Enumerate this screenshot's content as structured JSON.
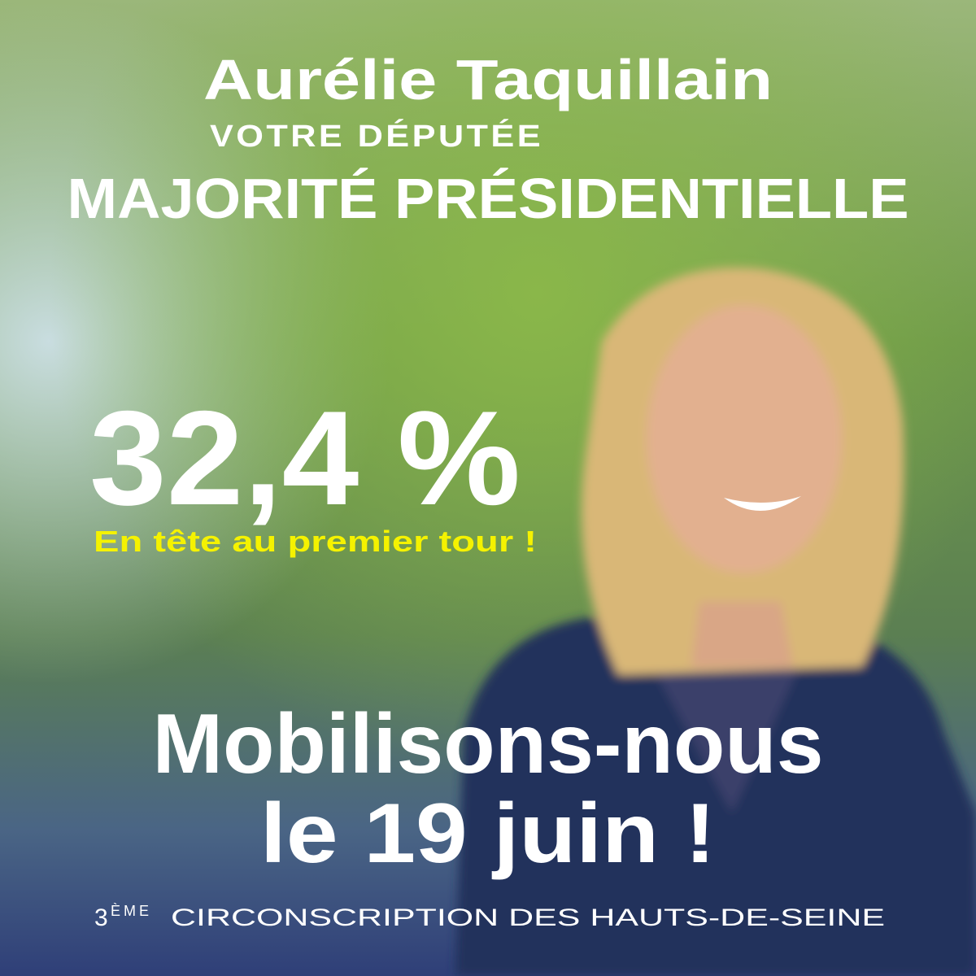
{
  "poster": {
    "name": "Aurélie Taquillain",
    "role": "VOTRE DÉPUTÉE",
    "party": "MAJORITÉ PRÉSIDENTIELLE",
    "score": "32,4 %",
    "score_note": "En tête au premier tour !",
    "call_line_1": "Mobilisons-nous",
    "call_line_2": "le 19 juin !",
    "footer_number": "3",
    "footer_suffix": "ÈME",
    "footer_text": "CIRCONSCRIPTION DES HAUTS-DE-SEINE"
  }
}
